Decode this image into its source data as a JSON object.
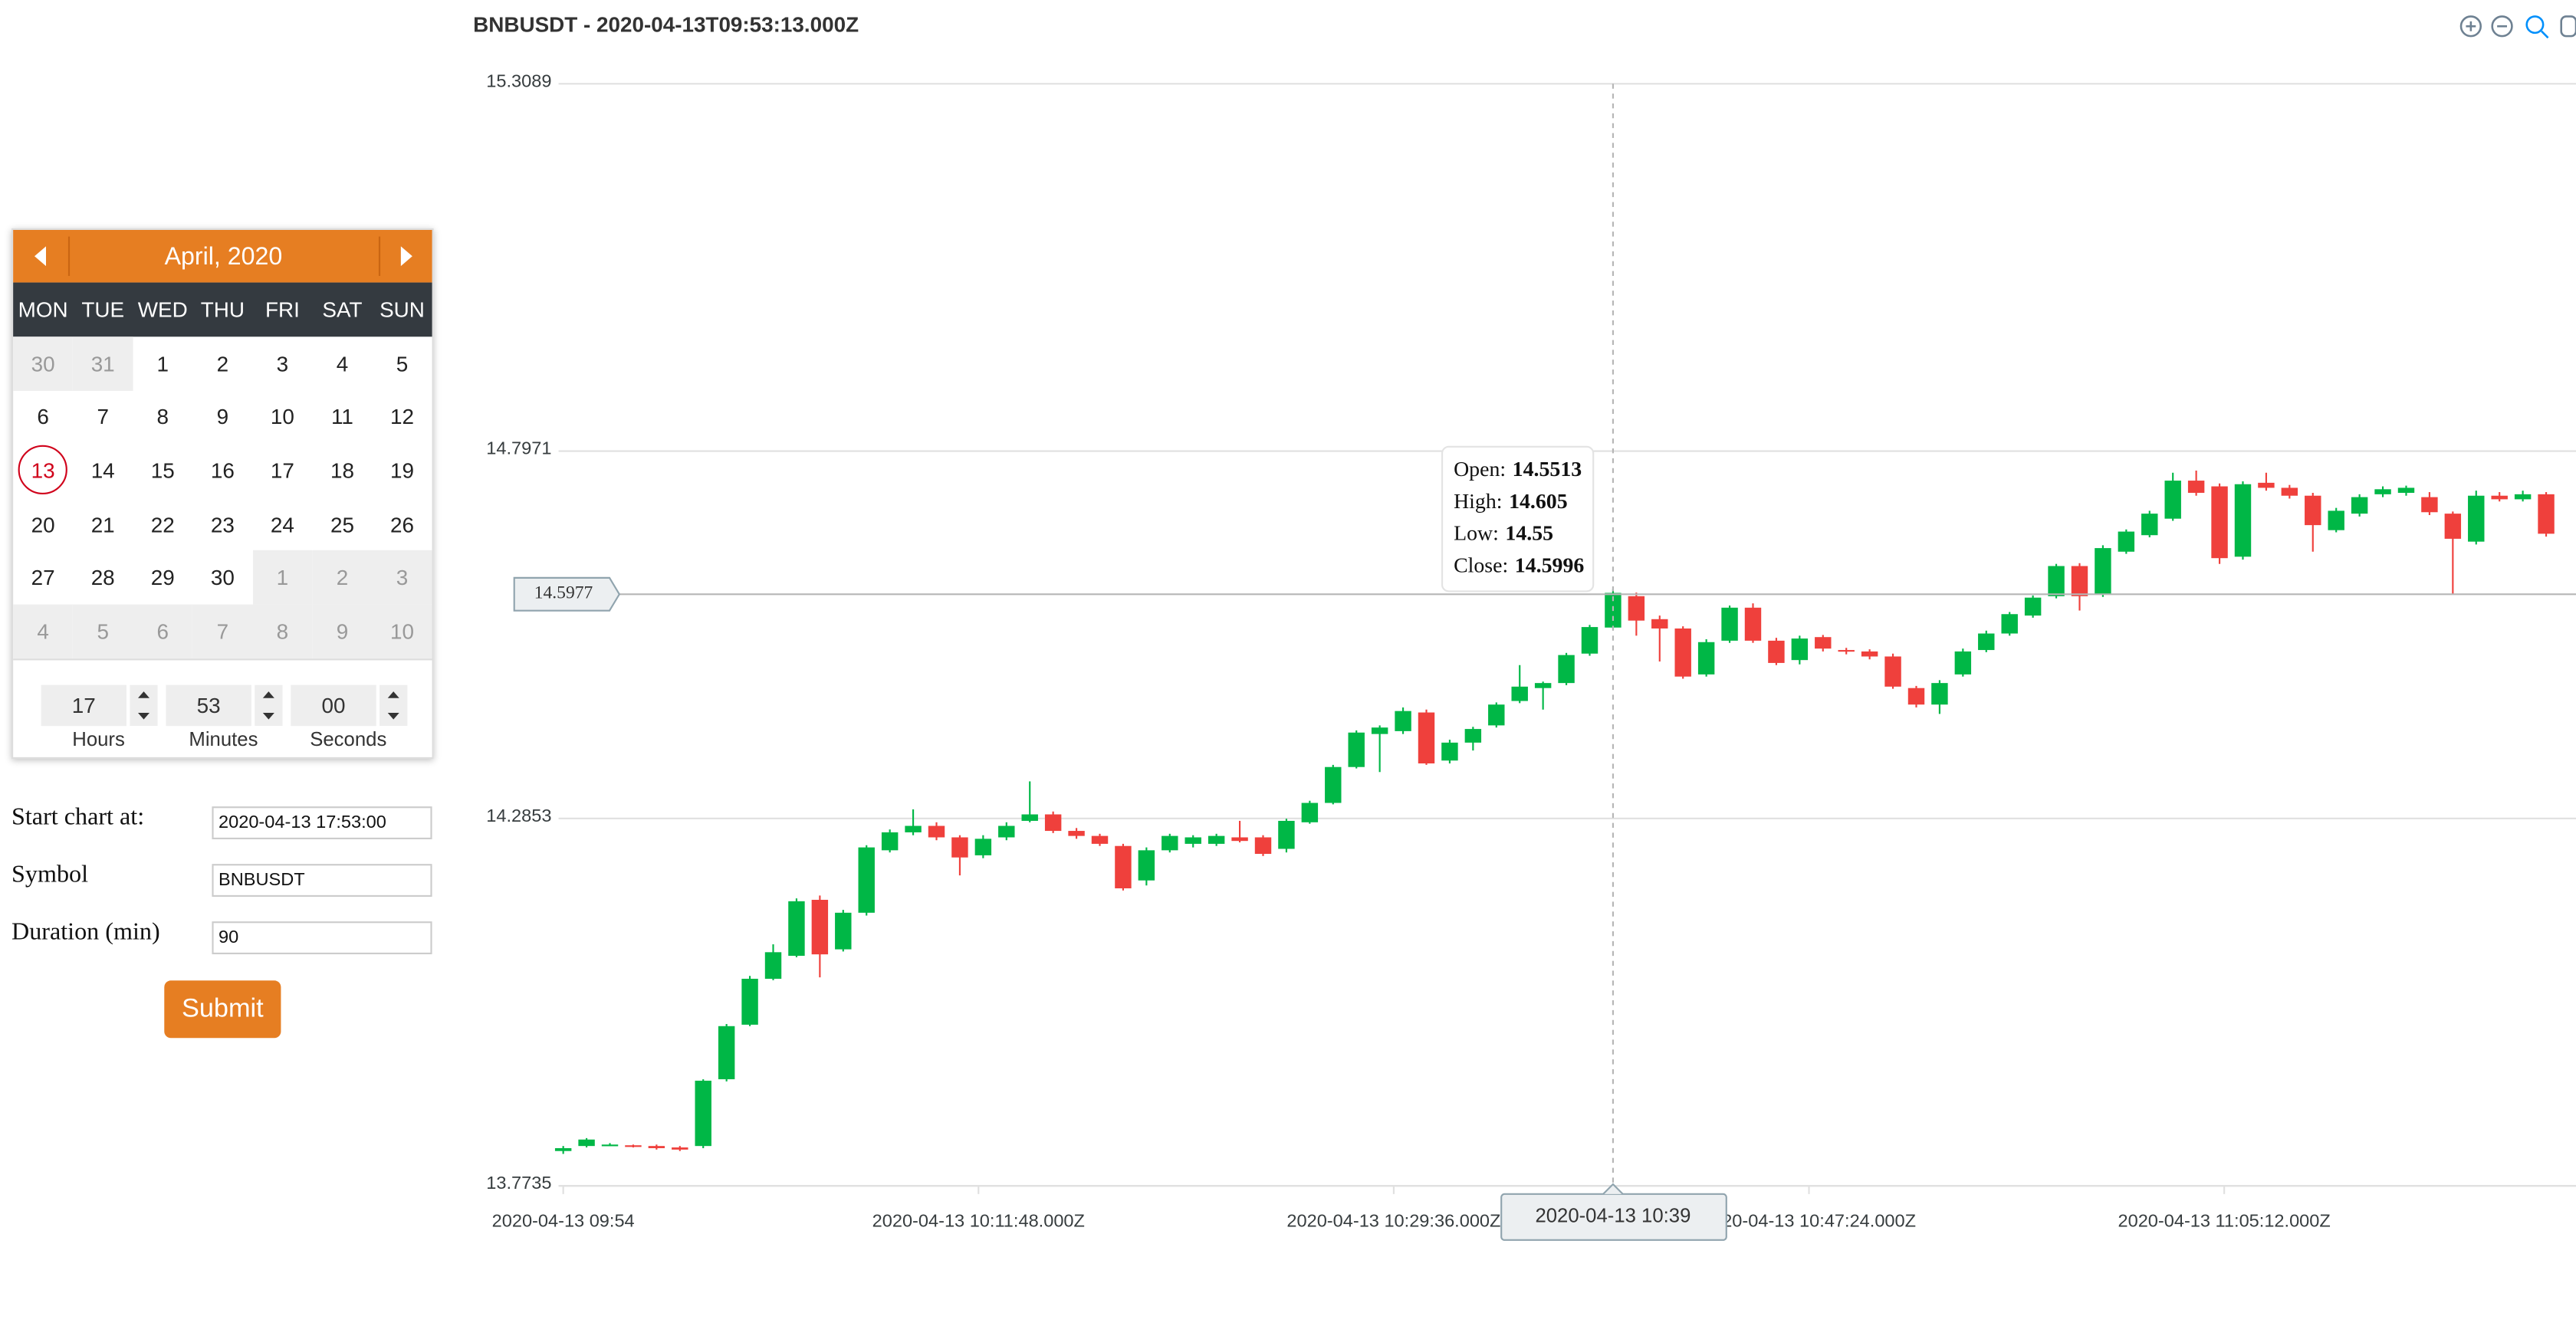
{
  "calendar": {
    "month": "April, 2020",
    "weekdays": [
      "MON",
      "TUE",
      "WED",
      "THU",
      "FRI",
      "SAT",
      "SUN"
    ],
    "days": [
      [
        30,
        31,
        1,
        2,
        3,
        4,
        5
      ],
      [
        6,
        7,
        8,
        9,
        10,
        11,
        12
      ],
      [
        13,
        14,
        15,
        16,
        17,
        18,
        19
      ],
      [
        20,
        21,
        22,
        23,
        24,
        25,
        26
      ],
      [
        27,
        28,
        29,
        30,
        1,
        2,
        3
      ],
      [
        4,
        5,
        6,
        7,
        8,
        9,
        10
      ]
    ],
    "selected": 13
  },
  "time": {
    "hours": "17",
    "minutes": "53",
    "seconds": "00",
    "labels": [
      "Hours",
      "Minutes",
      "Seconds"
    ]
  },
  "form": {
    "fields": [
      {
        "label": "Start chart at:",
        "value": "2020-04-13 17:53:00"
      },
      {
        "label": "Symbol",
        "value": "BNBUSDT"
      },
      {
        "label": "Duration (min)",
        "value": "90"
      }
    ],
    "submit": "Submit"
  },
  "chart_data": {
    "type": "candlestick",
    "title": "BNBUSDT - 2020-04-13T09:53:13.000Z",
    "x": [
      0,
      1,
      2,
      3,
      4,
      5,
      6,
      7,
      8,
      9,
      10,
      11,
      12,
      13,
      14,
      15,
      16,
      17,
      18,
      19,
      20,
      21,
      22,
      23,
      24,
      25,
      26,
      27,
      28,
      29,
      30,
      31,
      32,
      33,
      34,
      35,
      36,
      37,
      38,
      39,
      40,
      41,
      42,
      43,
      44,
      45,
      46,
      47,
      48,
      49,
      50,
      51,
      52,
      53,
      54,
      55,
      56,
      57,
      58,
      59,
      60,
      61,
      62,
      63,
      64,
      65,
      66,
      67,
      68,
      69,
      70,
      71,
      72,
      73,
      74,
      75,
      76,
      77,
      78,
      79,
      80,
      81,
      82,
      83,
      84,
      85
    ],
    "open": [
      13.822,
      13.829,
      13.83,
      13.83,
      13.829,
      13.827,
      13.829,
      13.922,
      13.998,
      14.062,
      14.094,
      14.172,
      14.103,
      14.154,
      14.241,
      14.266,
      14.275,
      14.259,
      14.234,
      14.259,
      14.282,
      14.291,
      14.268,
      14.261,
      14.247,
      14.199,
      14.241,
      14.25,
      14.25,
      14.259,
      14.259,
      14.243,
      14.28,
      14.307,
      14.357,
      14.403,
      14.407,
      14.433,
      14.366,
      14.391,
      14.415,
      14.449,
      14.467,
      14.474,
      14.515,
      14.5513,
      14.595,
      14.563,
      14.55,
      14.486,
      14.533,
      14.579,
      14.533,
      14.506,
      14.538,
      14.52,
      14.518,
      14.511,
      14.467,
      14.444,
      14.486,
      14.52,
      14.543,
      14.568,
      14.595,
      14.637,
      14.597,
      14.657,
      14.68,
      14.703,
      14.756,
      14.748,
      14.65,
      14.753,
      14.746,
      14.735,
      14.687,
      14.71,
      14.737,
      14.739,
      14.733,
      14.71,
      14.671,
      14.735,
      14.73,
      14.737
    ],
    "high": [
      13.829,
      13.84,
      13.833,
      13.831,
      13.831,
      13.829,
      13.922,
      13.999,
      14.066,
      14.11,
      14.174,
      14.178,
      14.158,
      14.248,
      14.27,
      14.298,
      14.28,
      14.262,
      14.262,
      14.28,
      14.337,
      14.295,
      14.272,
      14.264,
      14.25,
      14.245,
      14.264,
      14.262,
      14.264,
      14.282,
      14.262,
      14.285,
      14.31,
      14.36,
      14.408,
      14.415,
      14.44,
      14.437,
      14.395,
      14.413,
      14.447,
      14.499,
      14.476,
      14.516,
      14.555,
      14.605,
      14.6,
      14.568,
      14.553,
      14.535,
      14.582,
      14.585,
      14.537,
      14.54,
      14.541,
      14.523,
      14.521,
      14.515,
      14.47,
      14.478,
      14.522,
      14.547,
      14.573,
      14.596,
      14.64,
      14.641,
      14.666,
      14.688,
      14.714,
      14.767,
      14.77,
      14.752,
      14.755,
      14.767,
      14.75,
      14.739,
      14.718,
      14.737,
      14.748,
      14.749,
      14.74,
      14.713,
      14.742,
      14.74,
      14.742,
      14.74
    ],
    "low": [
      13.818,
      13.827,
      13.829,
      13.827,
      13.824,
      13.822,
      13.826,
      13.919,
      13.996,
      14.06,
      14.092,
      14.064,
      14.1,
      14.15,
      14.238,
      14.262,
      14.255,
      14.206,
      14.23,
      14.255,
      14.28,
      14.265,
      14.257,
      14.247,
      14.185,
      14.192,
      14.238,
      14.245,
      14.247,
      14.252,
      14.233,
      14.238,
      14.278,
      14.305,
      14.355,
      14.35,
      14.403,
      14.36,
      14.362,
      14.38,
      14.412,
      14.446,
      14.437,
      14.471,
      14.512,
      14.55,
      14.54,
      14.504,
      14.48,
      14.483,
      14.53,
      14.53,
      14.499,
      14.5,
      14.518,
      14.514,
      14.507,
      14.466,
      14.44,
      14.431,
      14.483,
      14.517,
      14.54,
      14.565,
      14.592,
      14.575,
      14.594,
      14.654,
      14.677,
      14.7,
      14.735,
      14.64,
      14.646,
      14.742,
      14.731,
      14.657,
      14.684,
      14.706,
      14.733,
      14.735,
      14.708,
      14.597,
      14.667,
      14.727,
      14.727,
      14.678
    ],
    "close": [
      13.826,
      13.838,
      13.831,
      13.829,
      13.826,
      13.824,
      13.92,
      13.996,
      14.062,
      14.099,
      14.17,
      14.096,
      14.154,
      14.245,
      14.266,
      14.275,
      14.259,
      14.231,
      14.257,
      14.275,
      14.291,
      14.268,
      14.261,
      14.25,
      14.188,
      14.241,
      14.261,
      14.259,
      14.261,
      14.254,
      14.236,
      14.282,
      14.307,
      14.357,
      14.405,
      14.412,
      14.435,
      14.362,
      14.391,
      14.41,
      14.444,
      14.469,
      14.474,
      14.513,
      14.552,
      14.5996,
      14.561,
      14.55,
      14.483,
      14.531,
      14.579,
      14.533,
      14.502,
      14.536,
      14.522,
      14.518,
      14.511,
      14.469,
      14.444,
      14.474,
      14.518,
      14.543,
      14.57,
      14.593,
      14.637,
      14.595,
      14.662,
      14.685,
      14.71,
      14.756,
      14.739,
      14.648,
      14.751,
      14.746,
      14.735,
      14.694,
      14.714,
      14.733,
      14.744,
      14.746,
      14.712,
      14.675,
      14.735,
      14.73,
      14.737,
      14.682
    ],
    "up_color": "#00b746",
    "down_color": "#ef403c",
    "xlim": [
      -0.2,
      86.28
    ],
    "ylim": [
      13.7735,
      15.3089
    ],
    "yticks": [
      13.7735,
      14.2853,
      14.7971,
      15.3089
    ],
    "xticks": [
      {
        "value": 0,
        "label": "2020-04-13 09:54"
      },
      {
        "value": 17.8,
        "label": "2020-04-13 10:11:48.000Z"
      },
      {
        "value": 35.6,
        "label": "2020-04-13 10:29:36.000Z"
      },
      {
        "value": 53.4,
        "label": "2020-04-13 10:47:24.000Z"
      },
      {
        "value": 71.2,
        "label": "2020-04-13 11:05:12.000Z"
      }
    ],
    "grid": true,
    "crosshair": {
      "x": 45,
      "y": 14.5977,
      "x_label": "2020-04-13 10:39"
    },
    "tooltip_labels": [
      "Open:",
      "High:",
      "Low:",
      "Close:"
    ]
  }
}
